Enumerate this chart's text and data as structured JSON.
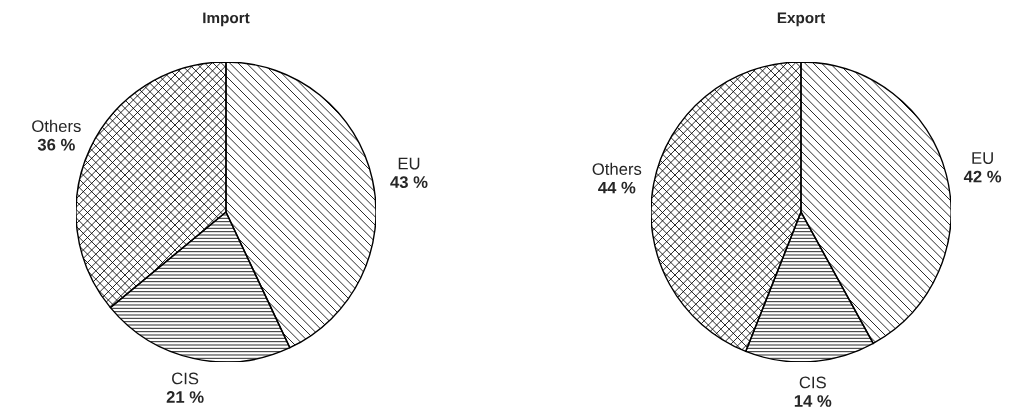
{
  "chart_data": [
    {
      "type": "pie",
      "title": "Import",
      "categories": [
        "EU",
        "CIS",
        "Others"
      ],
      "values": [
        43,
        21,
        36
      ],
      "value_labels": [
        "43 %",
        "21 %",
        "36 %"
      ],
      "colors": [
        "#ffffff",
        "#ffffff",
        "#ffffff"
      ]
    },
    {
      "type": "pie",
      "title": "Export",
      "categories": [
        "EU",
        "CIS",
        "Others"
      ],
      "values": [
        42,
        14,
        44
      ],
      "value_labels": [
        "42 %",
        "14 %",
        "44 %"
      ],
      "colors": [
        "#ffffff",
        "#ffffff",
        "#ffffff"
      ]
    }
  ]
}
